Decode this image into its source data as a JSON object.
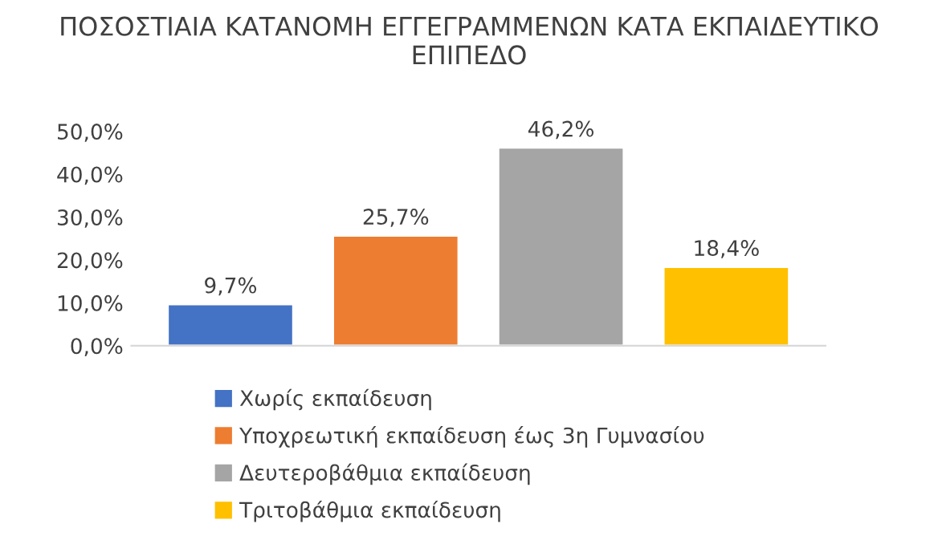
{
  "chart_data": {
    "type": "bar",
    "title": "ΠΟΣΟΣΤΙΑΙΑ ΚΑΤΑΝΟΜΗ ΕΓΓΕΓΡΑΜΜΕΝΩΝ ΚΑΤΑ ΕΚΠΑΙΔΕΥΤΙΚΟ ΕΠΙΠΕΔΟ",
    "categories": [
      null
    ],
    "series": [
      {
        "name": "Χωρίς εκπαίδευση",
        "color": "#4472c4",
        "values": [
          9.7
        ],
        "value_labels": [
          "9,7%"
        ]
      },
      {
        "name": "Υποχρεωτική εκπαίδευση έως 3η Γυμνασίου",
        "color": "#ed7d31",
        "values": [
          25.7
        ],
        "value_labels": [
          "25,7%"
        ]
      },
      {
        "name": "Δευτεροβάθμια εκπαίδευση",
        "color": "#a5a5a5",
        "values": [
          46.2
        ],
        "value_labels": [
          "46,2%"
        ]
      },
      {
        "name": "Τριτοβάθμια εκπαίδευση",
        "color": "#ffc000",
        "values": [
          18.4
        ],
        "value_labels": [
          "18,4%"
        ]
      }
    ],
    "ylim": [
      0,
      50
    ],
    "yticks": [
      {
        "value": 0,
        "label": "0,0%"
      },
      {
        "value": 10,
        "label": "10,0%"
      },
      {
        "value": 20,
        "label": "20,0%"
      },
      {
        "value": 30,
        "label": "30,0%"
      },
      {
        "value": 40,
        "label": "40,0%"
      },
      {
        "value": 50,
        "label": "50,0%"
      }
    ],
    "tick_labels": "y",
    "grid": false,
    "legend": "bottom"
  }
}
